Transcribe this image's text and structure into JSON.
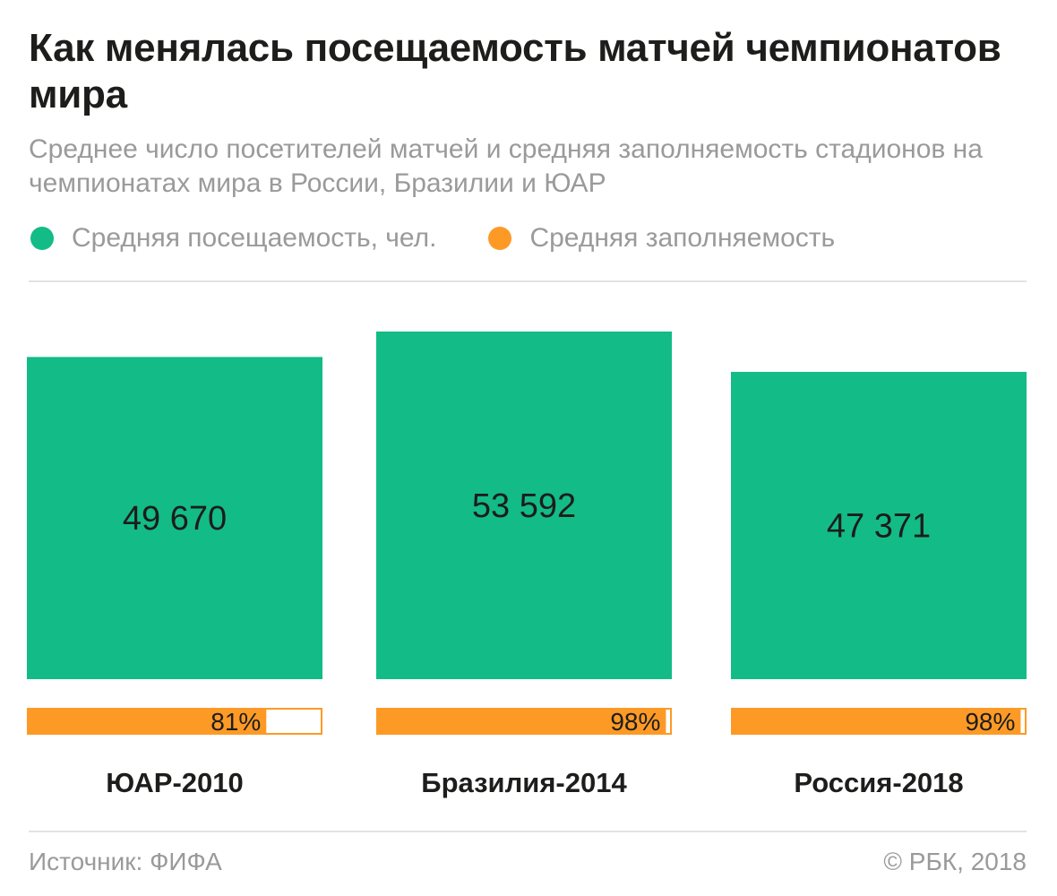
{
  "header": {
    "title": "Как менялась посещаемость матчей чемпионатов мира",
    "subtitle": "Среднее число посетителей матчей и средняя заполняемость стадионов на чемпионатах мира в России, Бразилии и ЮАР"
  },
  "legend": [
    {
      "label": "Средняя посещаемость, чел.",
      "color": "#13bb87"
    },
    {
      "label": "Средняя заполняемость",
      "color": "#fd9a26"
    }
  ],
  "chart_data": {
    "type": "bar",
    "categories": [
      "ЮАР-2010",
      "Бразилия-2014",
      "Россия-2018"
    ],
    "series": [
      {
        "name": "Средняя посещаемость, чел.",
        "values": [
          49670,
          53592,
          47371
        ],
        "labels": [
          "49 670",
          "53 592",
          "47 371"
        ],
        "color": "#13bb87"
      },
      {
        "name": "Средняя заполняемость",
        "values": [
          81,
          98,
          98
        ],
        "labels": [
          "81%",
          "98%",
          "98%"
        ],
        "color": "#fd9a26"
      }
    ],
    "title": "Как менялась посещаемость матчей чемпионатов мира",
    "xlabel": "",
    "ylabel": "",
    "grid": false,
    "legend_position": "top-left"
  },
  "footer": {
    "source": "Источник: ФИФА",
    "copyright": "© РБК, 2018"
  }
}
